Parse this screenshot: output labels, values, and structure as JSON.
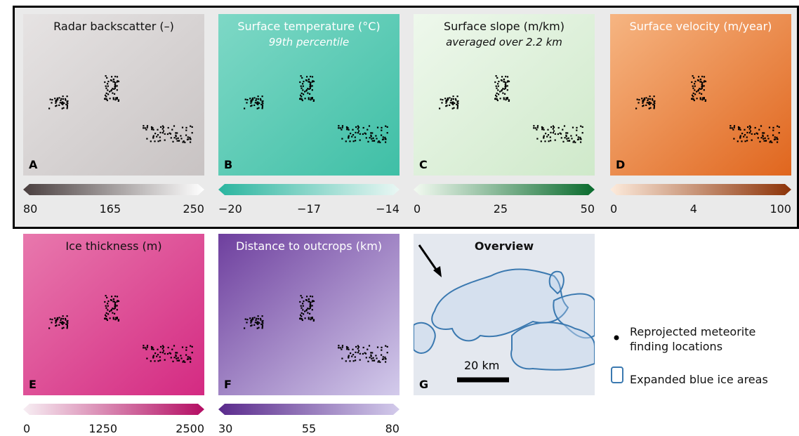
{
  "panels": [
    {
      "letter": "A",
      "title": "Radar backscatter (–)",
      "colorbar": {
        "ticks": [
          "80",
          "165",
          "250"
        ]
      }
    },
    {
      "letter": "B",
      "title": "Surface temperature (°C)",
      "subtitle": "99th percentile",
      "colorbar": {
        "ticks": [
          "−20",
          "−17",
          "−14"
        ]
      }
    },
    {
      "letter": "C",
      "title": "Surface slope (m/km)",
      "subtitle": "averaged over 2.2 km",
      "colorbar": {
        "ticks": [
          "0",
          "25",
          "50"
        ]
      }
    },
    {
      "letter": "D",
      "title": "Surface velocity (m/year)",
      "colorbar": {
        "ticks": [
          "0",
          "4",
          "100"
        ]
      }
    },
    {
      "letter": "E",
      "title": "Ice thickness (m)",
      "colorbar": {
        "ticks": [
          "0",
          "1250",
          "2500"
        ]
      }
    },
    {
      "letter": "F",
      "title": "Distance to outcrops (km)",
      "colorbar": {
        "ticks": [
          "30",
          "55",
          "80"
        ]
      }
    }
  ],
  "overview": {
    "letter": "G",
    "title": "Overview",
    "scale_bar": "20 km"
  },
  "legend": [
    {
      "label": "Reprojected meteorite finding locations"
    },
    {
      "label": "Expanded blue ice areas"
    }
  ]
}
